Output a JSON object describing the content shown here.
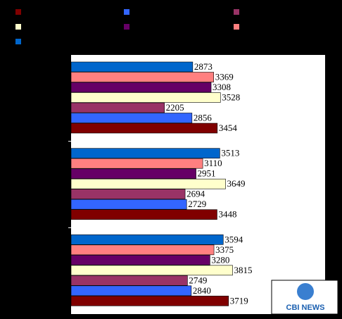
{
  "chart_data": {
    "type": "hbar",
    "categories": [
      null,
      null,
      null
    ],
    "series": [
      {
        "color": "#800000",
        "values": [
          3454,
          3448,
          3719
        ]
      },
      {
        "color": "#3366ff",
        "values": [
          2856,
          2729,
          2840
        ]
      },
      {
        "color": "#993366",
        "values": [
          2205,
          2694,
          2749
        ]
      },
      {
        "color": "#ffffcc",
        "values": [
          3528,
          3649,
          3815
        ]
      },
      {
        "color": "#660066",
        "values": [
          3308,
          2951,
          3280
        ]
      },
      {
        "color": "#ff8080",
        "values": [
          3369,
          3110,
          3375
        ]
      },
      {
        "color": "#0066cc",
        "values": [
          2873,
          3513,
          3594
        ]
      }
    ],
    "xlim": [
      0,
      6000
    ],
    "watermark": "CBI NEWS"
  }
}
